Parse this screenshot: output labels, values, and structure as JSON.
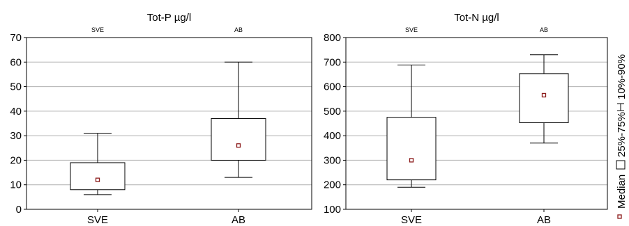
{
  "chart_data": [
    {
      "type": "boxplot",
      "title": "Tot-P µg/l",
      "categories": [
        "SVE",
        "AB"
      ],
      "ylim": [
        0,
        70
      ],
      "yticks": [
        0,
        10,
        20,
        30,
        40,
        50,
        60,
        70
      ],
      "grid": true,
      "boxes": [
        {
          "category": "SVE",
          "p10": 6,
          "q1": 8,
          "median": 12,
          "q3": 19,
          "p90": 31
        },
        {
          "category": "AB",
          "p10": 13,
          "q1": 20,
          "median": 26,
          "q3": 37,
          "p90": 60
        }
      ]
    },
    {
      "type": "boxplot",
      "title": "Tot-N µg/l",
      "categories": [
        "SVE",
        "AB"
      ],
      "ylim": [
        100,
        800
      ],
      "yticks": [
        100,
        200,
        300,
        400,
        500,
        600,
        700,
        800
      ],
      "grid": true,
      "boxes": [
        {
          "category": "SVE",
          "p10": 190,
          "q1": 220,
          "median": 300,
          "q3": 475,
          "p90": 688
        },
        {
          "category": "AB",
          "p10": 370,
          "q1": 453,
          "median": 565,
          "q3": 653,
          "p90": 730
        }
      ]
    }
  ],
  "legend": {
    "median": "Median",
    "box": "25%-75%",
    "whisker": "10%-90%",
    "placement": "right, rotated"
  },
  "colors": {
    "median_marker": "#8b1a1a",
    "grid": "#b0b0b0",
    "frame": "#000000"
  }
}
